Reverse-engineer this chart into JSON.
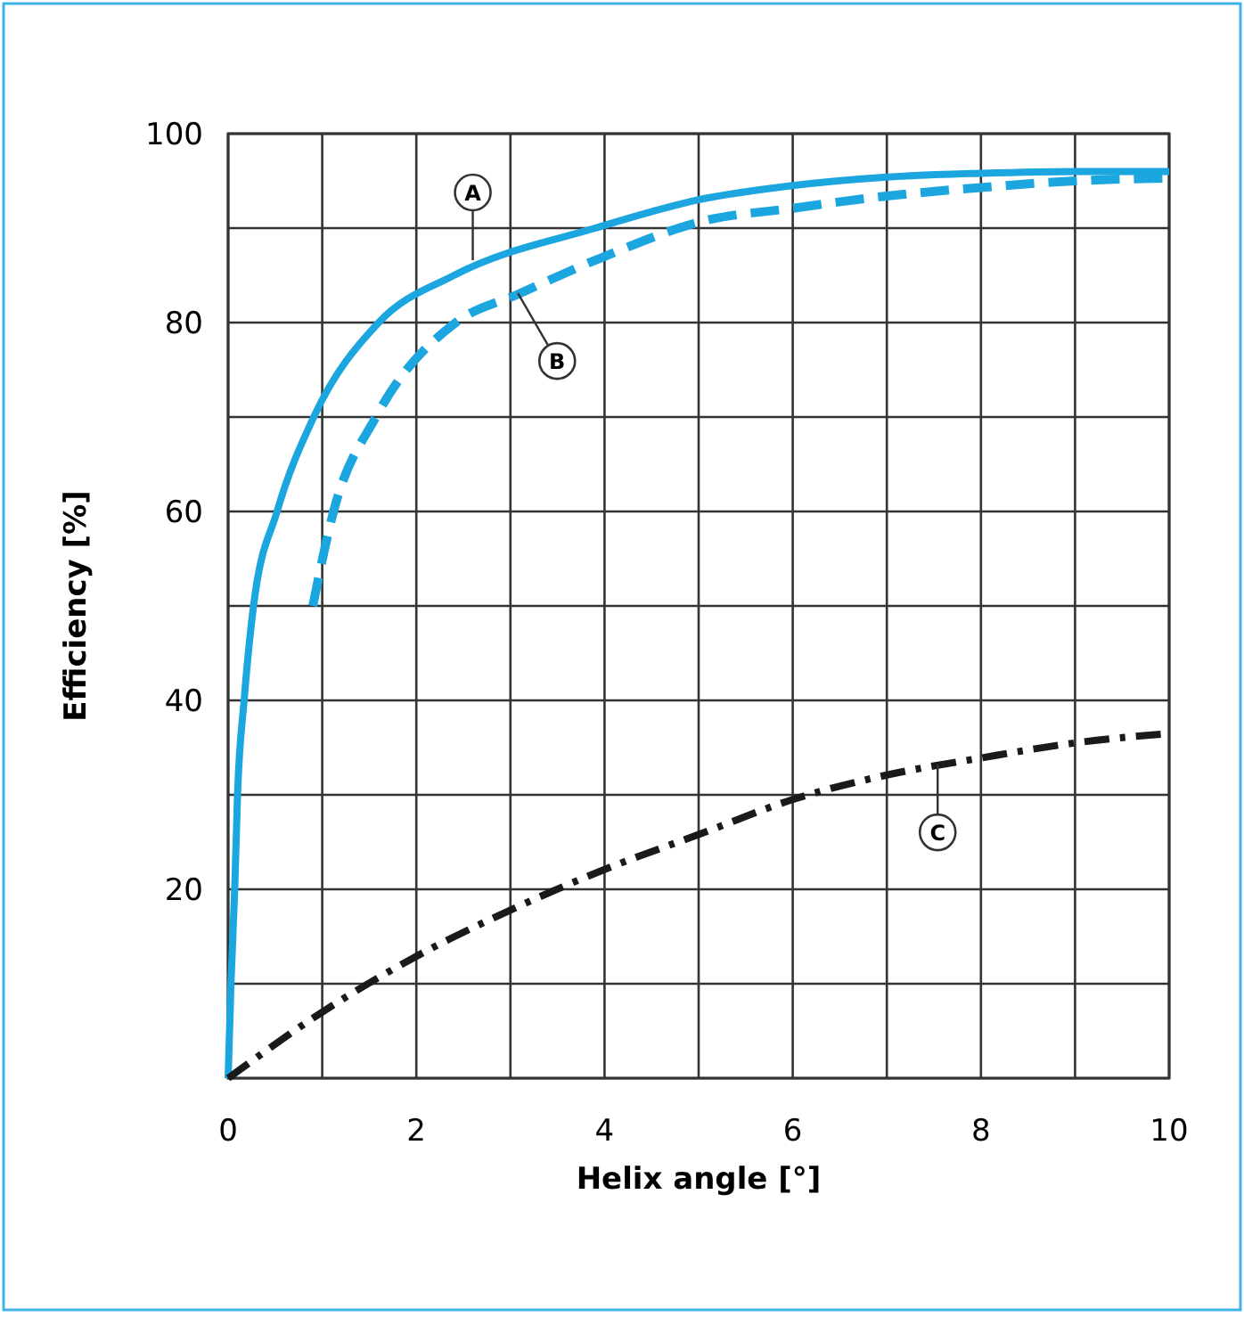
{
  "chart_data": {
    "type": "line",
    "xlabel": "Helix angle  [°]",
    "ylabel": "Efficiency  [%]",
    "xlim": [
      0,
      10
    ],
    "ylim": [
      0,
      100
    ],
    "xticks": [
      0,
      {
        "value": 1,
        "label": null
      },
      2,
      {
        "value": 3,
        "label": null
      },
      4,
      {
        "value": 5,
        "label": null
      },
      6,
      {
        "value": 7,
        "label": null
      },
      8,
      {
        "value": 9,
        "label": null
      },
      10
    ],
    "yticks": [
      {
        "value": 0,
        "label": null
      },
      {
        "value": 10,
        "label": null
      },
      20,
      {
        "value": 30,
        "label": null
      },
      40,
      {
        "value": 50,
        "label": null
      },
      60,
      {
        "value": 70,
        "label": null
      },
      80,
      {
        "value": 90,
        "label": null
      },
      100
    ],
    "grid": true,
    "marker": "none",
    "series": [
      {
        "color": "#1ba6e0",
        "line_style": "solid",
        "x": [
          0,
          0.03,
          0.07,
          0.1,
          0.17,
          0.27,
          0.52,
          0.91,
          1.6,
          2.4,
          3.9,
          5,
          6,
          7,
          8,
          9,
          10
        ],
        "values": [
          0,
          10,
          20,
          30,
          40,
          50,
          60,
          70,
          80,
          85,
          90,
          93,
          94.5,
          95.4,
          95.8,
          96,
          96
        ]
      },
      {
        "color": "#1ba6e0",
        "line_style": "dashed",
        "x": [
          0.9,
          1.12,
          1.57,
          2.42,
          3.08,
          4,
          5.07,
          6,
          7,
          8,
          9,
          10
        ],
        "values": [
          50,
          60,
          70,
          80,
          83,
          87,
          90.8,
          92.1,
          93.4,
          94.3,
          95,
          95.3
        ]
      },
      {
        "color": "#1a1a1a",
        "line_style": "dashdot",
        "x": [
          0,
          1,
          2,
          3,
          4,
          5,
          6,
          7,
          8,
          9,
          10
        ],
        "values": [
          0,
          7,
          12.9,
          17.8,
          22.1,
          25.8,
          29.5,
          32.1,
          33.9,
          35.5,
          36.5
        ]
      }
    ],
    "annotations": [
      {
        "text": "A",
        "x": 2.6,
        "y": 86.6
      },
      {
        "text": "B",
        "x": 3.08,
        "y": 83.1
      },
      {
        "text": "C",
        "x": 7.54,
        "y": 33.2
      }
    ]
  }
}
